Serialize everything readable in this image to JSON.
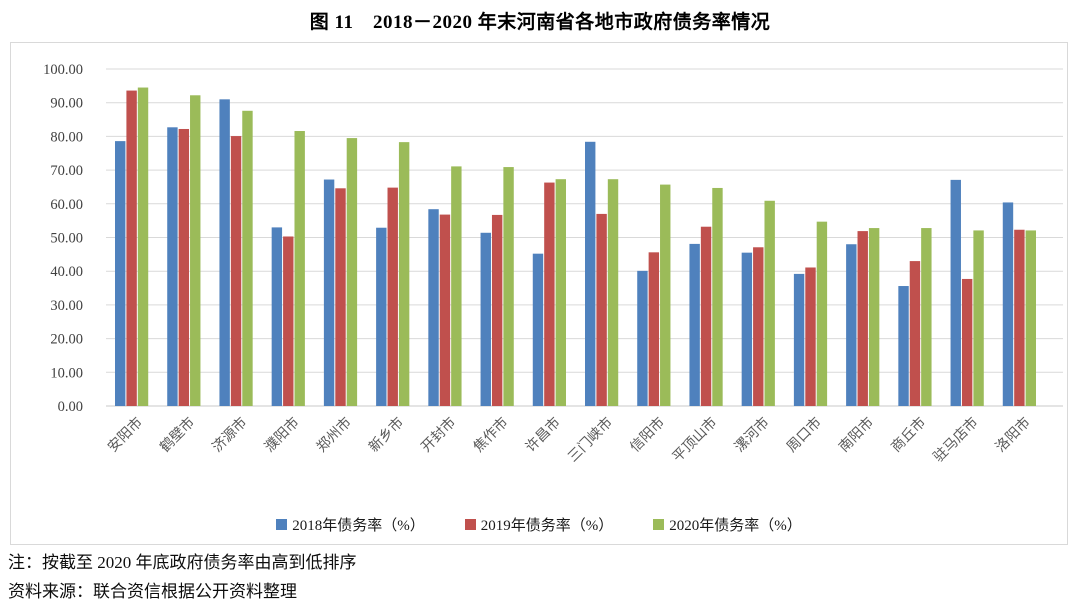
{
  "title": "图 11　2018－2020 年末河南省各地市政府债务率情况",
  "notes": [
    "注：按截至 2020 年底政府债务率由高到低排序",
    "资料来源：联合资信根据公开资料整理"
  ],
  "theme": {
    "series_2018_color": "#4f81bd",
    "series_2019_color": "#c0504d",
    "series_2020_color": "#9bbb59",
    "gridline_color": "#d9d9d9",
    "axis_line_color": "#c9c9c9",
    "y_tick_text_color": "#404040",
    "x_tick_text_color": "#595959",
    "chart_border_color": "#d9d9d9"
  },
  "chart_data": {
    "type": "bar",
    "title": "图 11　2018－2020 年末河南省各地市政府债务率情况",
    "categories": [
      "安阳市",
      "鹤壁市",
      "济源市",
      "濮阳市",
      "郑州市",
      "新乡市",
      "开封市",
      "焦作市",
      "许昌市",
      "三门峡市",
      "信阳市",
      "平顶山市",
      "漯河市",
      "周口市",
      "南阳市",
      "商丘市",
      "驻马店市",
      "洛阳市"
    ],
    "series": [
      {
        "name": "2018年债务率（%）",
        "color": "#4f81bd",
        "values": [
          78.6,
          82.7,
          91.0,
          53.0,
          67.2,
          52.9,
          58.4,
          51.4,
          45.2,
          78.4,
          40.1,
          48.1,
          45.5,
          39.2,
          48.0,
          35.6,
          67.1,
          60.4
        ]
      },
      {
        "name": "2019年债务率（%）",
        "color": "#c0504d",
        "values": [
          93.6,
          82.2,
          80.1,
          50.3,
          64.6,
          64.8,
          56.8,
          56.7,
          66.3,
          57.0,
          45.6,
          53.2,
          47.1,
          41.1,
          51.9,
          43.0,
          37.7,
          52.3
        ]
      },
      {
        "name": "2020年债务率（%）",
        "color": "#9bbb59",
        "values": [
          94.5,
          92.2,
          87.6,
          81.6,
          79.5,
          78.3,
          71.1,
          70.9,
          67.3,
          67.3,
          65.7,
          64.7,
          60.9,
          54.7,
          52.8,
          52.8,
          52.1,
          52.1
        ]
      }
    ],
    "xlabel": "",
    "ylabel": "",
    "ylim": [
      0,
      100
    ],
    "ytick_step": 10,
    "ytick_decimals": 2,
    "grid": "horizontal",
    "legend_position": "bottom",
    "note_sorted": "按截至 2020 年底政府债务率由高到低排序"
  }
}
